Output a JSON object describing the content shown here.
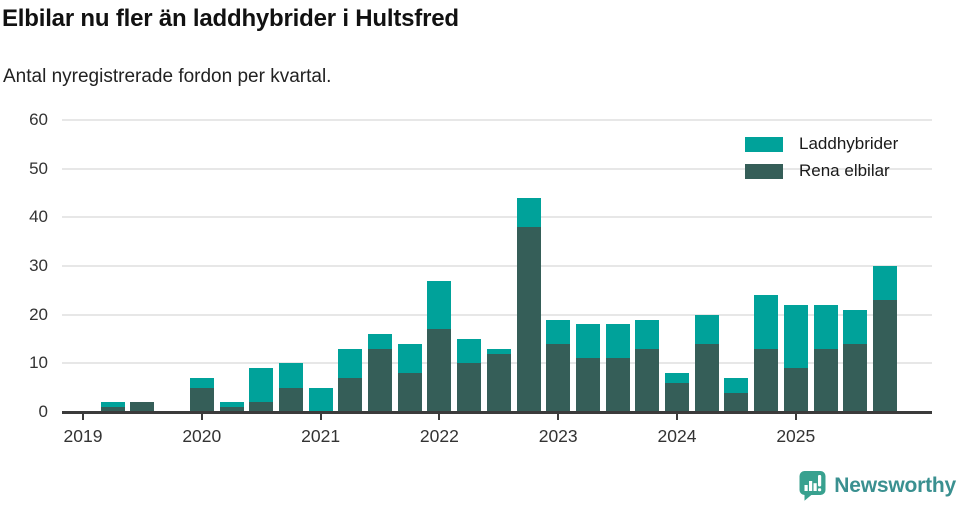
{
  "header": {
    "title": "Elbilar nu fler än laddhybrider i Hultsfred",
    "subtitle": "Antal nyregistrerade fordon per kvartal."
  },
  "chart_data": {
    "type": "bar",
    "stacked": true,
    "title": "Elbilar nu fler än laddhybrider i Hultsfred",
    "subtitle": "Antal nyregistrerade fordon per kvartal.",
    "xlabel": "",
    "ylabel": "",
    "ylim": [
      0,
      60
    ],
    "y_ticks": [
      0,
      10,
      20,
      30,
      40,
      50,
      60
    ],
    "grid": "horizontal",
    "legend_position": "top-right",
    "x_year_labels": [
      "2019",
      "2020",
      "2021",
      "2022",
      "2023",
      "2024",
      "2025"
    ],
    "categories": [
      "2019 Q1",
      "2019 Q2",
      "2019 Q3",
      "2019 Q4",
      "2020 Q1",
      "2020 Q2",
      "2020 Q3",
      "2020 Q4",
      "2021 Q1",
      "2021 Q2",
      "2021 Q3",
      "2021 Q4",
      "2022 Q1",
      "2022 Q2",
      "2022 Q3",
      "2022 Q4",
      "2023 Q1",
      "2023 Q2",
      "2023 Q3",
      "2023 Q4",
      "2024 Q1",
      "2024 Q2",
      "2024 Q3",
      "2024 Q4",
      "2025 Q1",
      "2025 Q2",
      "2025 Q3",
      "2025 Q4"
    ],
    "series": [
      {
        "name": "Laddhybrider",
        "color": "#00a29a",
        "stack_position": "top",
        "values": [
          0,
          1,
          0,
          0,
          2,
          1,
          7,
          5,
          5,
          6,
          3,
          6,
          10,
          5,
          1,
          6,
          5,
          7,
          7,
          6,
          2,
          6,
          3,
          11,
          13,
          9,
          7,
          7
        ]
      },
      {
        "name": "Rena elbilar",
        "color": "#355e58",
        "stack_position": "bottom",
        "values": [
          0,
          1,
          2,
          0,
          5,
          1,
          2,
          5,
          0,
          7,
          13,
          8,
          17,
          10,
          12,
          38,
          14,
          11,
          11,
          13,
          6,
          14,
          4,
          13,
          9,
          13,
          14,
          23
        ]
      }
    ],
    "totals": [
      0,
      2,
      2,
      0,
      7,
      2,
      9,
      10,
      5,
      13,
      16,
      14,
      27,
      15,
      13,
      44,
      19,
      18,
      18,
      19,
      8,
      20,
      7,
      24,
      22,
      22,
      21,
      30
    ]
  },
  "colors": {
    "laddhybrider": "#00a29a",
    "rena_elbilar": "#355e58",
    "axis": "#3b3b3b",
    "gridline": "#e7e7e7",
    "logo_icon": "#38a18f",
    "logo_text": "#3a9090"
  },
  "footer": {
    "brand": "Newsworthy"
  }
}
